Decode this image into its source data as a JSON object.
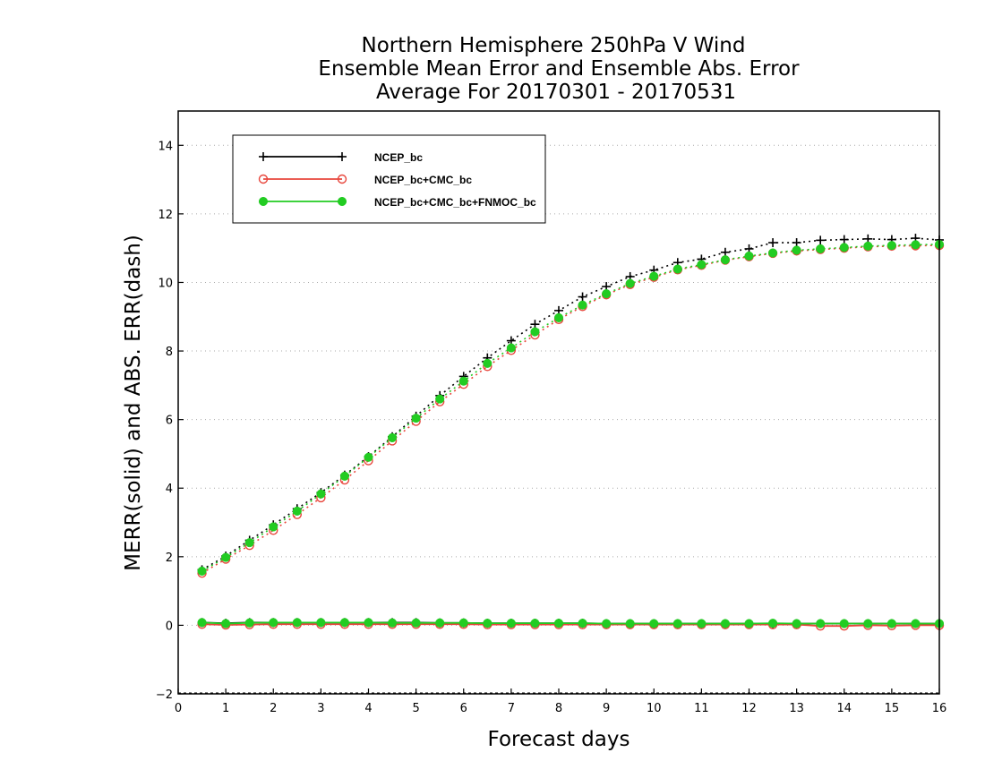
{
  "chart_data": {
    "type": "line",
    "title": [
      "Northern Hemisphere 250hPa V Wind",
      "Ensemble Mean Error and Ensemble Abs. Error",
      "Average For 20170301 - 20170531"
    ],
    "xlabel": "Forecast days",
    "ylabel": "MERR(solid) and ABS. ERR(dash)",
    "xlim": [
      0,
      16
    ],
    "ylim": [
      -2,
      15
    ],
    "xticks": [
      0,
      1,
      2,
      3,
      4,
      5,
      6,
      7,
      8,
      9,
      10,
      11,
      12,
      13,
      14,
      15,
      16
    ],
    "yticks": [
      -2,
      0,
      2,
      4,
      6,
      8,
      10,
      12,
      14
    ],
    "grid": "horizontal dotted",
    "legend_position": "top-left",
    "x": [
      0.5,
      1,
      1.5,
      2,
      2.5,
      3,
      3.5,
      4,
      4.5,
      5,
      5.5,
      6,
      6.5,
      7,
      7.5,
      8,
      8.5,
      9,
      9.5,
      10,
      10.5,
      11,
      11.5,
      12,
      12.5,
      13,
      13.5,
      14,
      14.5,
      15,
      15.5,
      16
    ],
    "series": [
      {
        "name": "NCEP_bc",
        "color": "#000000",
        "marker": "plus",
        "abs_err": [
          1.62,
          2.02,
          2.48,
          2.93,
          3.4,
          3.87,
          4.38,
          4.92,
          5.5,
          6.1,
          6.7,
          7.26,
          7.8,
          8.3,
          8.78,
          9.18,
          9.58,
          9.88,
          10.17,
          10.36,
          10.58,
          10.68,
          10.88,
          10.98,
          11.16,
          11.16,
          11.23,
          11.25,
          11.27,
          11.25,
          11.29,
          11.24
        ],
        "mean_err": [
          0.08,
          0.06,
          0.08,
          0.08,
          0.08,
          0.08,
          0.08,
          0.08,
          0.08,
          0.08,
          0.07,
          0.07,
          0.06,
          0.06,
          0.06,
          0.06,
          0.06,
          0.05,
          0.05,
          0.05,
          0.05,
          0.05,
          0.05,
          0.05,
          0.05,
          0.05,
          0.05,
          0.05,
          0.05,
          0.05,
          0.05,
          0.05
        ]
      },
      {
        "name": "NCEP_bc+CMC_bc",
        "color": "#e8463c",
        "marker": "open-circle",
        "abs_err": [
          1.52,
          1.93,
          2.33,
          2.77,
          3.23,
          3.72,
          4.24,
          4.8,
          5.38,
          5.95,
          6.52,
          7.03,
          7.55,
          8.02,
          8.47,
          8.92,
          9.3,
          9.64,
          9.94,
          10.15,
          10.37,
          10.5,
          10.65,
          10.75,
          10.85,
          10.92,
          10.96,
          11.0,
          11.04,
          11.06,
          11.07,
          11.08
        ],
        "mean_err": [
          0.03,
          0.01,
          0.02,
          0.03,
          0.03,
          0.03,
          0.03,
          0.03,
          0.03,
          0.03,
          0.03,
          0.03,
          0.02,
          0.02,
          0.02,
          0.02,
          0.02,
          0.02,
          0.02,
          0.02,
          0.02,
          0.02,
          0.02,
          0.02,
          0.02,
          0.02,
          -0.02,
          -0.02,
          0.0,
          -0.01,
          0.0,
          0.0
        ]
      },
      {
        "name": "NCEP_bc+CMC_bc+FNMOC_bc",
        "color": "#22cc22",
        "marker": "filled-circle",
        "abs_err": [
          1.58,
          1.98,
          2.41,
          2.87,
          3.33,
          3.83,
          4.35,
          4.9,
          5.47,
          6.04,
          6.6,
          7.12,
          7.64,
          8.09,
          8.56,
          8.97,
          9.34,
          9.67,
          9.97,
          10.18,
          10.39,
          10.52,
          10.66,
          10.77,
          10.86,
          10.94,
          10.98,
          11.02,
          11.06,
          11.08,
          11.1,
          11.11
        ],
        "mean_err": [
          0.08,
          0.05,
          0.07,
          0.08,
          0.08,
          0.08,
          0.08,
          0.08,
          0.07,
          0.07,
          0.07,
          0.07,
          0.06,
          0.06,
          0.06,
          0.06,
          0.06,
          0.05,
          0.05,
          0.05,
          0.05,
          0.05,
          0.05,
          0.05,
          0.06,
          0.05,
          0.05,
          0.05,
          0.05,
          0.05,
          0.05,
          0.05
        ]
      }
    ]
  }
}
